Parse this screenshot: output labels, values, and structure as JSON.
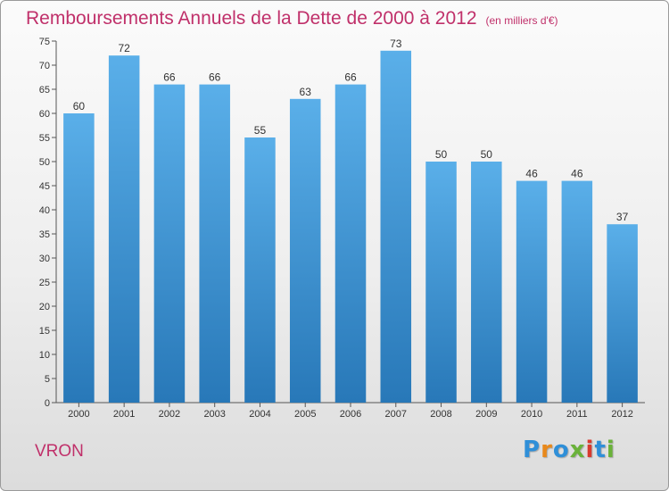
{
  "header": {
    "title": "Remboursements Annuels de la Dette de 2000 à 2012",
    "subtitle": "(en milliers d'€)"
  },
  "footer": {
    "commune": "VRON",
    "logo": {
      "letters": [
        "P",
        "r",
        "o",
        "x",
        "i",
        "t",
        "i"
      ],
      "colors": [
        "#2f8fd8",
        "#e8891c",
        "#2f8fd8",
        "#6ab23a",
        "#d83a2f",
        "#2f8fd8",
        "#6ab23a"
      ]
    }
  },
  "colors": {
    "bar_top": "#5aafe9",
    "bar_bottom": "#2878b8",
    "text_accent": "#c0306a"
  },
  "chart_data": {
    "type": "bar",
    "categories": [
      "2000",
      "2001",
      "2002",
      "2003",
      "2004",
      "2005",
      "2006",
      "2007",
      "2008",
      "2009",
      "2010",
      "2011",
      "2012"
    ],
    "values": [
      60,
      72,
      66,
      66,
      55,
      63,
      66,
      73,
      50,
      50,
      46,
      46,
      37
    ],
    "title": "Remboursements Annuels de la Dette de 2000 à 2012",
    "xlabel": "",
    "ylabel": "",
    "ylim": [
      0,
      75
    ],
    "yticks": [
      0,
      5,
      10,
      15,
      20,
      25,
      30,
      35,
      40,
      45,
      50,
      55,
      60,
      65,
      70,
      75
    ],
    "grid": false,
    "legend": "none"
  }
}
